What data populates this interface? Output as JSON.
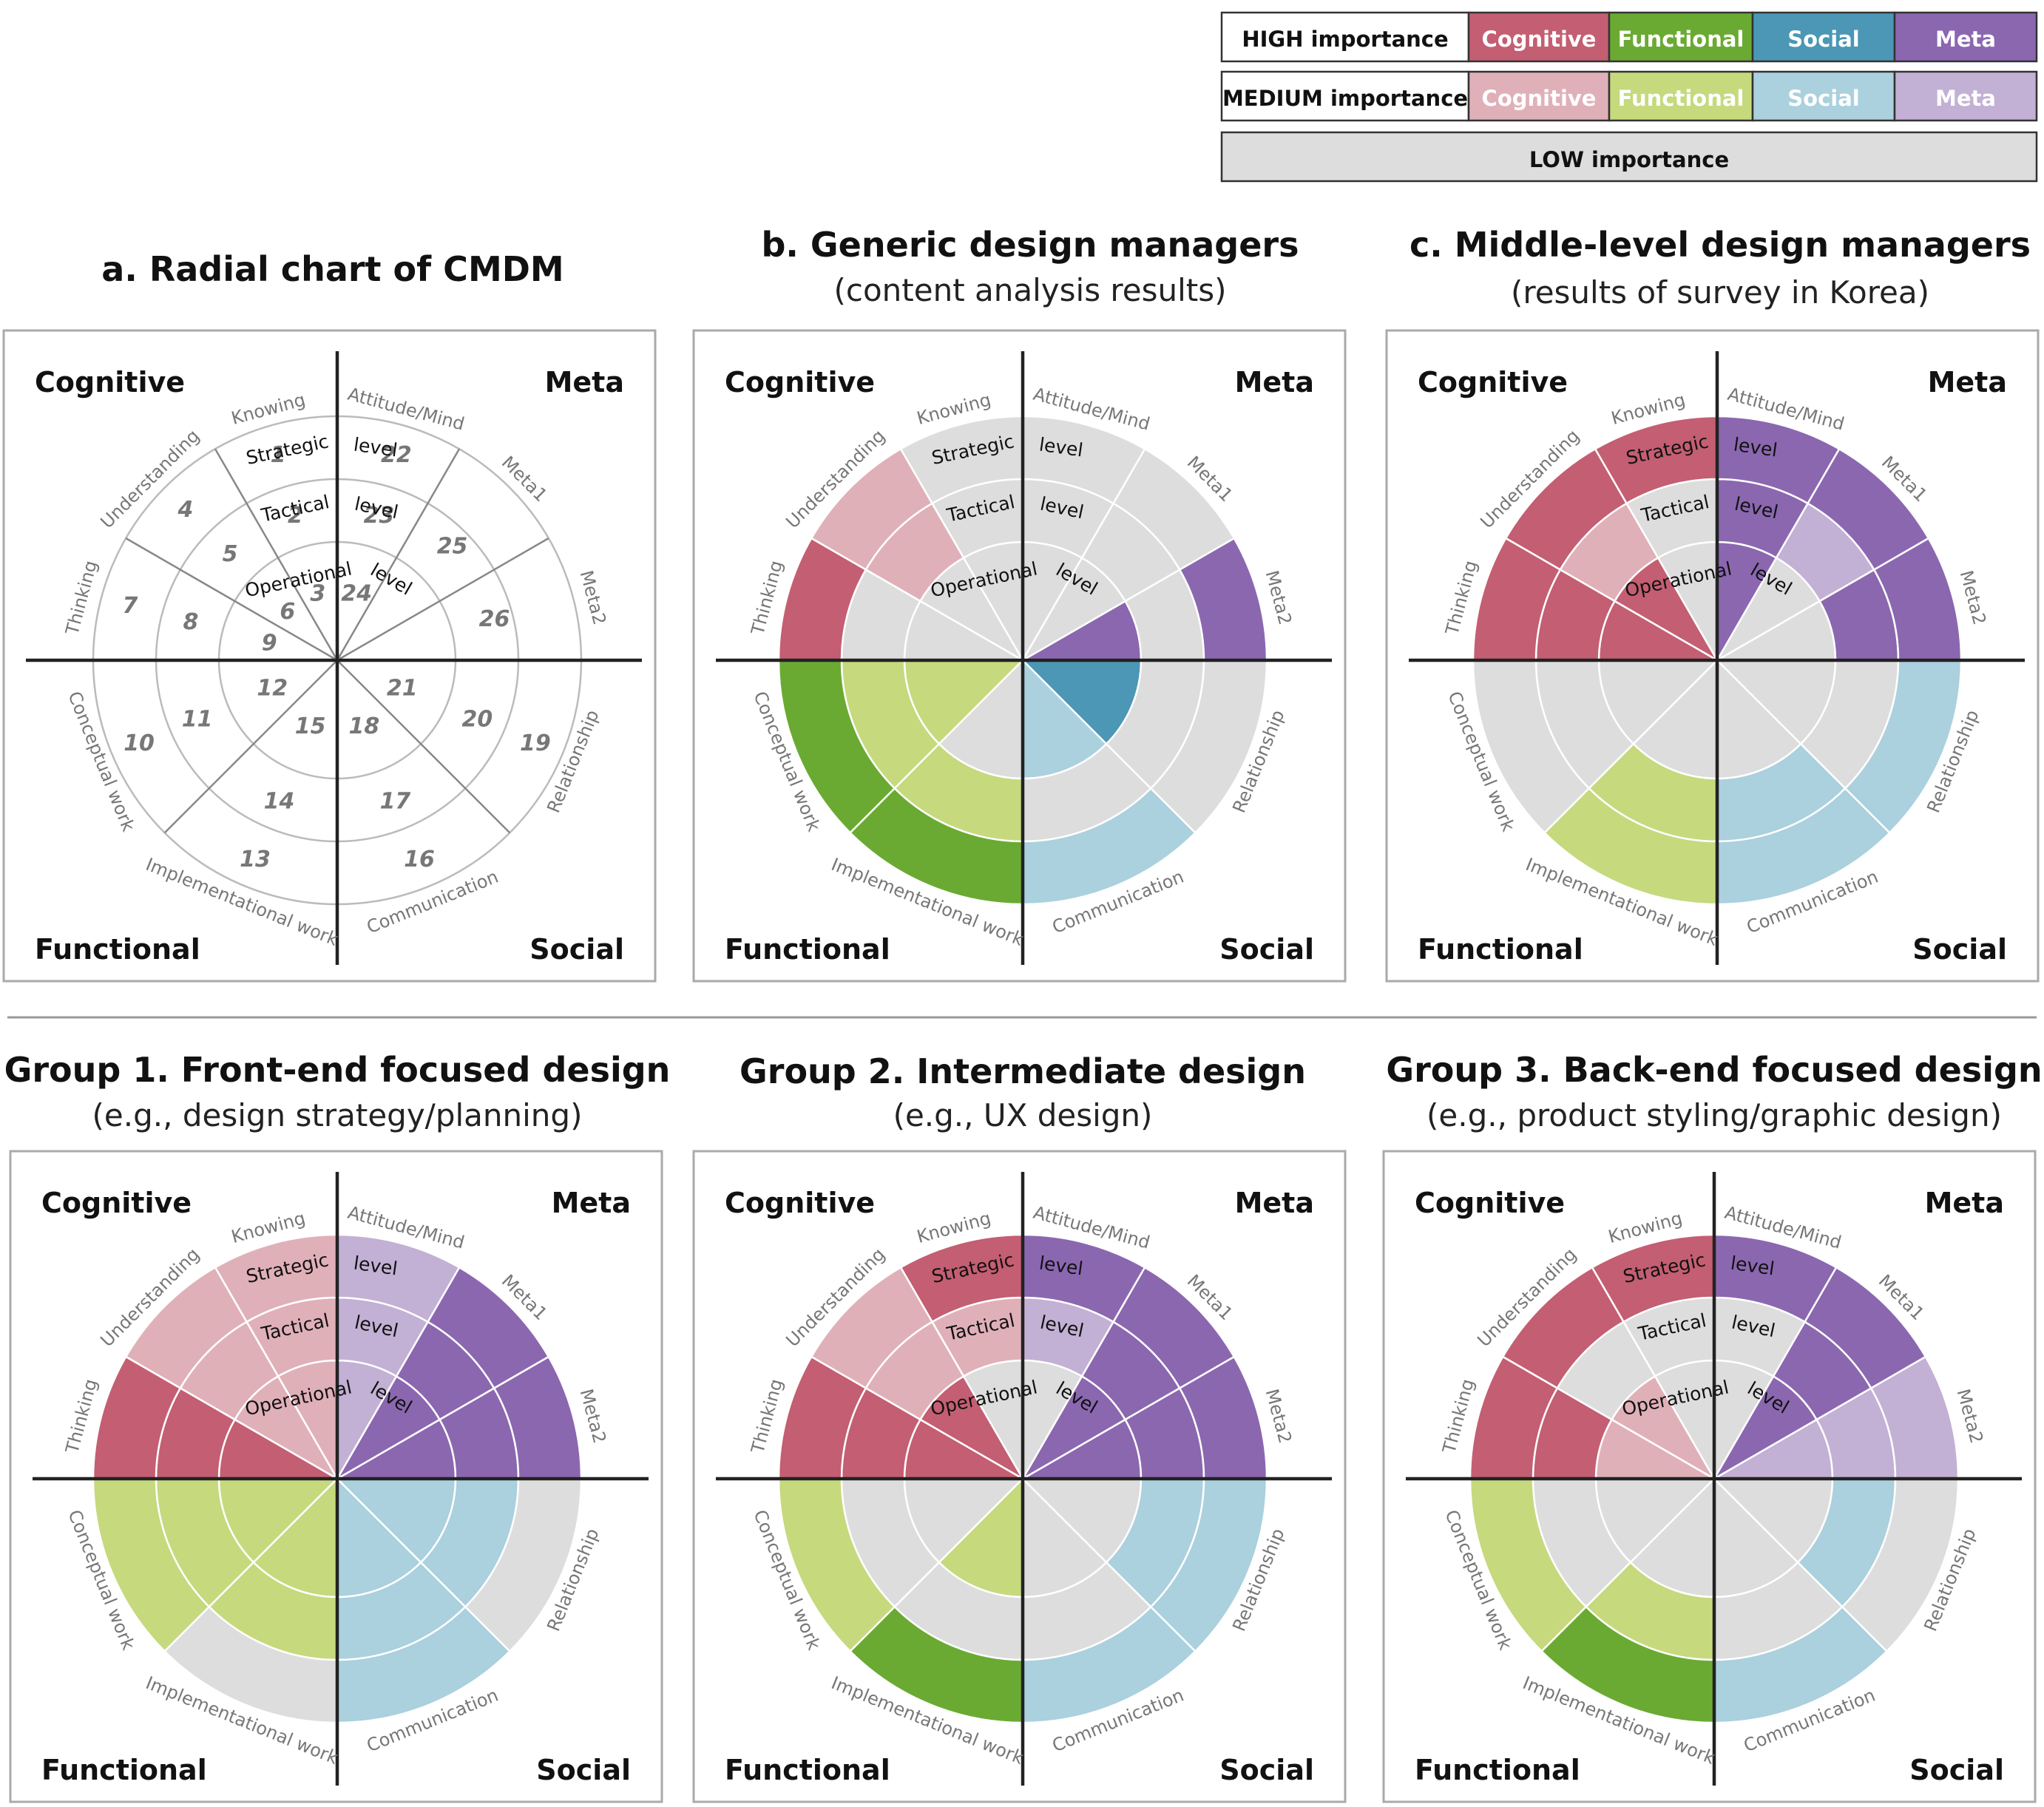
{
  "legend": {
    "rows": [
      {
        "label": "HIGH importance",
        "cells": [
          "Cognitive",
          "Functional",
          "Social",
          "Meta"
        ]
      },
      {
        "label": "MEDIUM importance",
        "cells": [
          "Cognitive",
          "Functional",
          "Social",
          "Meta"
        ]
      },
      {
        "label": "LOW importance",
        "cells": []
      }
    ]
  },
  "colors": {
    "cognitive_high": "#c45e72",
    "cognitive_med": "#e0b0b9",
    "functional_high": "#6aaa32",
    "functional_med": "#c6d97d",
    "social_high": "#4b97b5",
    "social_med": "#abd0de",
    "meta_high": "#8b67b0",
    "meta_med": "#c3b0d5",
    "low": "#dddddd",
    "text_light": "#ffffff"
  },
  "labels": {
    "quadrants": [
      "Cognitive",
      "Meta",
      "Functional",
      "Social"
    ],
    "components": [
      "Knowing",
      "Understanding",
      "Thinking",
      "Conceptual work",
      "Implementational work",
      "Communication",
      "Relationship",
      "Meta2",
      "Meta1",
      "Attitude/Mind"
    ],
    "levels": {
      "strategic": "Strategic",
      "tactical": "Tactical",
      "operational": "Operational",
      "level": "level"
    }
  },
  "panels": [
    {
      "title": "a. Radial chart of CMDM",
      "subtitle": "",
      "type": "numbers",
      "numbers": [
        "1",
        "2",
        "3",
        "4",
        "5",
        "6",
        "7",
        "8",
        "9",
        "10",
        "11",
        "12",
        "13",
        "14",
        "15",
        "16",
        "17",
        "18",
        "19",
        "20",
        "21",
        "22",
        "23",
        "24",
        "25",
        "26"
      ]
    },
    {
      "title": "b. Generic design managers",
      "subtitle": "(content analysis results)",
      "type": "colored",
      "grid": [
        [
          "L",
          "L",
          "L"
        ],
        [
          "L",
          "M",
          "M"
        ],
        [
          "L",
          "L",
          "H"
        ],
        [
          "M",
          "M",
          "H"
        ],
        [
          "L",
          "M",
          "H"
        ],
        [
          "M",
          "L",
          "M"
        ],
        [
          "H",
          "L",
          "L"
        ],
        [
          "H",
          "L",
          "H"
        ],
        [
          "L",
          "L",
          "L"
        ],
        [
          "L",
          "L",
          "L"
        ]
      ]
    },
    {
      "title": "c. Middle-level design managers",
      "subtitle": "(results of survey in Korea)",
      "type": "colored",
      "grid": [
        [
          "L",
          "L",
          "H"
        ],
        [
          "H",
          "M",
          "H"
        ],
        [
          "H",
          "H",
          "H"
        ],
        [
          "L",
          "L",
          "L"
        ],
        [
          "L",
          "M",
          "M"
        ],
        [
          "L",
          "M",
          "M"
        ],
        [
          "L",
          "L",
          "M"
        ],
        [
          "L",
          "H",
          "H"
        ],
        [
          "L",
          "M",
          "H"
        ],
        [
          "H",
          "H",
          "H"
        ]
      ]
    },
    {
      "title": "Group 1. Front-end focused design",
      "subtitle": "(e.g., design strategy/planning)",
      "type": "colored",
      "grid": [
        [
          "M",
          "M",
          "M"
        ],
        [
          "M",
          "M",
          "M"
        ],
        [
          "H",
          "H",
          "H"
        ],
        [
          "M",
          "M",
          "M"
        ],
        [
          "M",
          "M",
          "L"
        ],
        [
          "M",
          "M",
          "M"
        ],
        [
          "M",
          "M",
          "L"
        ],
        [
          "H",
          "H",
          "H"
        ],
        [
          "H",
          "H",
          "H"
        ],
        [
          "M",
          "M",
          "M"
        ]
      ]
    },
    {
      "title": "Group 2. Intermediate design",
      "subtitle": "(e.g., UX design)",
      "type": "colored",
      "grid": [
        [
          "L",
          "M",
          "H"
        ],
        [
          "H",
          "M",
          "M"
        ],
        [
          "H",
          "H",
          "H"
        ],
        [
          "L",
          "L",
          "M"
        ],
        [
          "M",
          "L",
          "H"
        ],
        [
          "L",
          "L",
          "M"
        ],
        [
          "L",
          "M",
          "M"
        ],
        [
          "H",
          "H",
          "H"
        ],
        [
          "H",
          "H",
          "H"
        ],
        [
          "L",
          "M",
          "H"
        ]
      ]
    },
    {
      "title": "Group 3. Back-end focused design",
      "subtitle": "(e.g., product styling/graphic design)",
      "type": "colored",
      "grid": [
        [
          "L",
          "L",
          "H"
        ],
        [
          "M",
          "L",
          "H"
        ],
        [
          "M",
          "H",
          "H"
        ],
        [
          "L",
          "L",
          "M"
        ],
        [
          "L",
          "M",
          "H"
        ],
        [
          "L",
          "L",
          "M"
        ],
        [
          "L",
          "M",
          "L"
        ],
        [
          "M",
          "M",
          "M"
        ],
        [
          "H",
          "H",
          "H"
        ],
        [
          "L",
          "L",
          "H"
        ]
      ]
    }
  ]
}
